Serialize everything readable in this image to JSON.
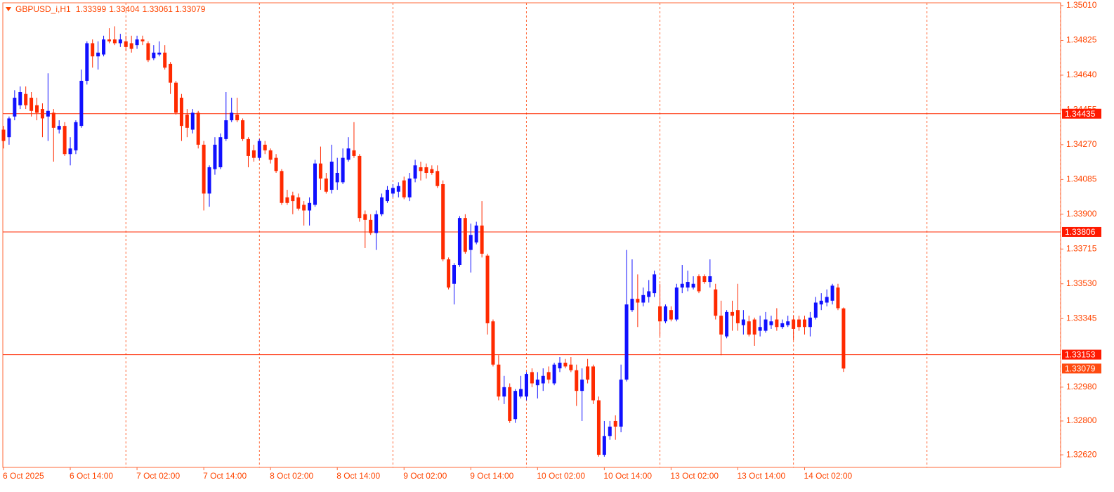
{
  "chart_data": {
    "type": "candlestick",
    "symbol": "GBPUSD_i,H1",
    "bull_color": "#1010ff",
    "bear_color": "#ff2a00",
    "ylim": [
      1.32553,
      1.35025
    ],
    "yticks": [
      {
        "value": 1.3501,
        "label": "1.35010"
      },
      1.34825,
      {
        "value": 1.3464,
        "label": "1.34640"
      },
      1.34455,
      {
        "value": 1.3427,
        "label": "1.34270"
      },
      1.34085,
      {
        "value": 1.339,
        "label": "1.33900"
      },
      1.33715,
      {
        "value": 1.3353,
        "label": "1.33530"
      },
      1.33345,
      {
        "value": 1.3298,
        "label": "1.32980"
      },
      {
        "value": 1.328,
        "label": "1.32800"
      },
      {
        "value": 1.3262,
        "label": "1.32620"
      }
    ],
    "levels": [
      1.34435,
      1.33806,
      1.33153
    ],
    "categories": [
      "6 Oct 2025",
      null,
      null,
      null,
      null,
      null,
      null,
      null,
      null,
      null,
      null,
      null,
      "6 Oct 14:00",
      null,
      null,
      null,
      null,
      null,
      null,
      null,
      null,
      null,
      null,
      null,
      "7 Oct 02:00",
      null,
      null,
      null,
      null,
      null,
      null,
      null,
      null,
      null,
      null,
      null,
      "7 Oct 14:00",
      null,
      null,
      null,
      null,
      null,
      null,
      null,
      null,
      null,
      null,
      null,
      "8 Oct 02:00",
      null,
      null,
      null,
      null,
      null,
      null,
      null,
      null,
      null,
      null,
      null,
      "8 Oct 14:00",
      null,
      null,
      null,
      null,
      null,
      null,
      null,
      null,
      null,
      null,
      null,
      "9 Oct 02:00",
      null,
      null,
      null,
      null,
      null,
      null,
      null,
      null,
      null,
      null,
      null,
      "9 Oct 14:00",
      null,
      null,
      null,
      null,
      null,
      null,
      null,
      null,
      null,
      null,
      null,
      "10 Oct 02:00",
      null,
      null,
      null,
      null,
      null,
      null,
      null,
      null,
      null,
      null,
      null,
      "10 Oct 14:00",
      null,
      null,
      null,
      null,
      null,
      null,
      null,
      null,
      null,
      null,
      null,
      "13 Oct 02:00",
      null,
      null,
      null,
      null,
      null,
      null,
      null,
      null,
      null,
      null,
      null,
      "13 Oct 14:00",
      null,
      null,
      null,
      null,
      null,
      null,
      null,
      null,
      null,
      null,
      null,
      "14 Oct 02:00",
      null,
      null,
      null,
      null,
      null,
      null,
      null
    ],
    "values": [
      [
        1.3435,
        1.3437,
        1.3425,
        1.3429
      ],
      [
        1.3431,
        1.3442,
        1.3427,
        1.3441
      ],
      [
        1.3442,
        1.3456,
        1.344,
        1.3452
      ],
      [
        1.3448,
        1.3458,
        1.3446,
        1.3455
      ],
      [
        1.3454,
        1.3458,
        1.3446,
        1.3448
      ],
      [
        1.3452,
        1.3455,
        1.3442,
        1.3445
      ],
      [
        1.3448,
        1.3452,
        1.344,
        1.3444
      ],
      [
        1.3446,
        1.3449,
        1.3431,
        1.3441
      ],
      [
        1.3442,
        1.3465,
        1.3429,
        1.3445
      ],
      [
        1.3444,
        1.3446,
        1.3418,
        1.3436
      ],
      [
        1.3435,
        1.344,
        1.3433,
        1.3437
      ],
      [
        1.3437,
        1.3439,
        1.3421,
        1.3422
      ],
      [
        1.3422,
        1.3431,
        1.3416,
        1.3425
      ],
      [
        1.3424,
        1.344,
        1.3422,
        1.3439
      ],
      [
        1.3437,
        1.3467,
        1.3436,
        1.3461
      ],
      [
        1.3461,
        1.3482,
        1.3459,
        1.3481
      ],
      [
        1.3481,
        1.3483,
        1.3468,
        1.3474
      ],
      [
        1.3474,
        1.3482,
        1.3467,
        1.3476
      ],
      [
        1.3475,
        1.3485,
        1.3474,
        1.3483
      ],
      [
        1.3483,
        1.3489,
        1.3481,
        1.3482
      ],
      [
        1.3483,
        1.349,
        1.348,
        1.3481
      ],
      [
        1.3481,
        1.3486,
        1.3479,
        1.3483
      ],
      [
        1.3482,
        1.3485,
        1.3477,
        1.3479
      ],
      [
        1.3481,
        1.3485,
        1.3476,
        1.3478
      ],
      [
        1.348,
        1.3485,
        1.3478,
        1.3483
      ],
      [
        1.3483,
        1.3485,
        1.348,
        1.3482
      ],
      [
        1.3481,
        1.3482,
        1.3471,
        1.3472
      ],
      [
        1.3473,
        1.348,
        1.3472,
        1.3476
      ],
      [
        1.3475,
        1.3482,
        1.3474,
        1.3476
      ],
      [
        1.3476,
        1.348,
        1.3467,
        1.3468
      ],
      [
        1.347,
        1.3471,
        1.3454,
        1.346
      ],
      [
        1.346,
        1.3461,
        1.3443,
        1.3444
      ],
      [
        1.3452,
        1.3454,
        1.3429,
        1.3437
      ],
      [
        1.3443,
        1.3446,
        1.3431,
        1.3436
      ],
      [
        1.3435,
        1.3446,
        1.3433,
        1.3444
      ],
      [
        1.3444,
        1.3445,
        1.3425,
        1.3427
      ],
      [
        1.3427,
        1.3429,
        1.3392,
        1.3401
      ],
      [
        1.3401,
        1.3416,
        1.3394,
        1.3415
      ],
      [
        1.3414,
        1.3431,
        1.3411,
        1.3427
      ],
      [
        1.3415,
        1.3433,
        1.3414,
        1.3431
      ],
      [
        1.343,
        1.3455,
        1.3429,
        1.344
      ],
      [
        1.344,
        1.3452,
        1.3439,
        1.3444
      ],
      [
        1.3443,
        1.3452,
        1.3439,
        1.344
      ],
      [
        1.344,
        1.3441,
        1.3429,
        1.343
      ],
      [
        1.343,
        1.3431,
        1.3415,
        1.3421
      ],
      [
        1.3424,
        1.3427,
        1.3418,
        1.342
      ],
      [
        1.342,
        1.343,
        1.3419,
        1.3429
      ],
      [
        1.3427,
        1.3429,
        1.3422,
        1.3424
      ],
      [
        1.3424,
        1.3425,
        1.3417,
        1.3419
      ],
      [
        1.342,
        1.3422,
        1.3412,
        1.3413
      ],
      [
        1.3413,
        1.3414,
        1.3395,
        1.3396
      ],
      [
        1.3399,
        1.3403,
        1.3395,
        1.3396
      ],
      [
        1.34,
        1.3402,
        1.339,
        1.3397
      ],
      [
        1.3399,
        1.3401,
        1.3392,
        1.3393
      ],
      [
        1.3395,
        1.3397,
        1.3384,
        1.3392
      ],
      [
        1.3392,
        1.3399,
        1.3384,
        1.3396
      ],
      [
        1.3395,
        1.3419,
        1.3394,
        1.3417
      ],
      [
        1.3417,
        1.3426,
        1.3403,
        1.3409
      ],
      [
        1.3409,
        1.3412,
        1.3401,
        1.3402
      ],
      [
        1.3403,
        1.3427,
        1.3401,
        1.3418
      ],
      [
        1.3407,
        1.342,
        1.3403,
        1.3412
      ],
      [
        1.3407,
        1.3425,
        1.3406,
        1.342
      ],
      [
        1.3419,
        1.3431,
        1.3418,
        1.3425
      ],
      [
        1.3424,
        1.3439,
        1.342,
        1.3421
      ],
      [
        1.3421,
        1.3422,
        1.3386,
        1.3388
      ],
      [
        1.339,
        1.3392,
        1.3372,
        1.3387
      ],
      [
        1.3387,
        1.339,
        1.3379,
        1.338
      ],
      [
        1.338,
        1.3392,
        1.3371,
        1.339
      ],
      [
        1.339,
        1.3401,
        1.3389,
        1.3399
      ],
      [
        1.3397,
        1.3405,
        1.3396,
        1.3403
      ],
      [
        1.3401,
        1.3406,
        1.3399,
        1.3404
      ],
      [
        1.3402,
        1.3407,
        1.3399,
        1.3405
      ],
      [
        1.3408,
        1.341,
        1.3398,
        1.3399
      ],
      [
        1.3399,
        1.3412,
        1.3397,
        1.3409
      ],
      [
        1.3409,
        1.3419,
        1.3407,
        1.3416
      ],
      [
        1.3415,
        1.3418,
        1.3408,
        1.3413
      ],
      [
        1.3415,
        1.3417,
        1.3409,
        1.3412
      ],
      [
        1.3414,
        1.3416,
        1.3411,
        1.3412
      ],
      [
        1.3413,
        1.3416,
        1.3404,
        1.3405
      ],
      [
        1.3406,
        1.3408,
        1.3365,
        1.3366
      ],
      [
        1.3366,
        1.3367,
        1.335,
        1.3351
      ],
      [
        1.3353,
        1.3364,
        1.3342,
        1.3363
      ],
      [
        1.3363,
        1.3389,
        1.3362,
        1.3388
      ],
      [
        1.3388,
        1.339,
        1.3369,
        1.337
      ],
      [
        1.3371,
        1.3385,
        1.3359,
        1.3379
      ],
      [
        1.3375,
        1.3386,
        1.3374,
        1.3384
      ],
      [
        1.3384,
        1.3397,
        1.3367,
        1.3369
      ],
      [
        1.3368,
        1.3369,
        1.3326,
        1.3332
      ],
      [
        1.3333,
        1.3334,
        1.3309,
        1.331
      ],
      [
        1.331,
        1.3315,
        1.3291,
        1.3293
      ],
      [
        1.3293,
        1.3304,
        1.3289,
        1.3298
      ],
      [
        1.3298,
        1.33,
        1.3279,
        1.328
      ],
      [
        1.3281,
        1.3297,
        1.3279,
        1.3296
      ],
      [
        1.3293,
        1.3304,
        1.3292,
        1.3297
      ],
      [
        1.3293,
        1.3306,
        1.3291,
        1.3305
      ],
      [
        1.3306,
        1.3308,
        1.3298,
        1.33
      ],
      [
        1.3299,
        1.3306,
        1.3292,
        1.3302
      ],
      [
        1.33,
        1.3308,
        1.3296,
        1.3304
      ],
      [
        1.3306,
        1.3309,
        1.33,
        1.3302
      ],
      [
        1.33,
        1.3311,
        1.3299,
        1.331
      ],
      [
        1.3308,
        1.3314,
        1.3306,
        1.3311
      ],
      [
        1.3311,
        1.3313,
        1.3308,
        1.3309
      ],
      [
        1.331,
        1.3314,
        1.3306,
        1.3307
      ],
      [
        1.3307,
        1.331,
        1.3288,
        1.3296
      ],
      [
        1.3296,
        1.3308,
        1.328,
        1.3302
      ],
      [
        1.3309,
        1.3313,
        1.33,
        1.3302
      ],
      [
        1.3309,
        1.331,
        1.3289,
        1.3291
      ],
      [
        1.3291,
        1.3293,
        1.3261,
        1.3262
      ],
      [
        1.3262,
        1.328,
        1.3261,
        1.3272
      ],
      [
        1.3272,
        1.328,
        1.327,
        1.3277
      ],
      [
        1.328,
        1.3283,
        1.327,
        1.3277
      ],
      [
        1.3277,
        1.331,
        1.3274,
        1.3302
      ],
      [
        1.3302,
        1.3371,
        1.3301,
        1.3342
      ],
      [
        1.3339,
        1.3366,
        1.3338,
        1.3345
      ],
      [
        1.3345,
        1.3358,
        1.333,
        1.3343
      ],
      [
        1.3343,
        1.3351,
        1.3341,
        1.3347
      ],
      [
        1.3346,
        1.3355,
        1.3343,
        1.3349
      ],
      [
        1.3348,
        1.336,
        1.3346,
        1.3358
      ],
      [
        1.3341,
        1.3353,
        1.3325,
        1.3333
      ],
      [
        1.3333,
        1.3342,
        1.3332,
        1.3341
      ],
      [
        1.3339,
        1.3341,
        1.3333,
        1.3334
      ],
      [
        1.3334,
        1.3353,
        1.3333,
        1.3351
      ],
      [
        1.3351,
        1.3363,
        1.3348,
        1.3353
      ],
      [
        1.3351,
        1.336,
        1.3349,
        1.3354
      ],
      [
        1.3351,
        1.3357,
        1.335,
        1.3353
      ],
      [
        1.3357,
        1.3358,
        1.3348,
        1.3349
      ],
      [
        1.3357,
        1.3358,
        1.3353,
        1.3354
      ],
      [
        1.3354,
        1.3366,
        1.3351,
        1.3357
      ],
      [
        1.335,
        1.3353,
        1.3334,
        1.3336
      ],
      [
        1.3336,
        1.3344,
        1.3315,
        1.3326
      ],
      [
        1.3325,
        1.3339,
        1.3324,
        1.3338
      ],
      [
        1.3338,
        1.3344,
        1.3328,
        1.3336
      ],
      [
        1.3339,
        1.3353,
        1.3328,
        1.3332
      ],
      [
        1.3331,
        1.3339,
        1.3326,
        1.3334
      ],
      [
        1.3333,
        1.3336,
        1.3325,
        1.3326
      ],
      [
        1.3334,
        1.3335,
        1.332,
        1.3326
      ],
      [
        1.3328,
        1.3336,
        1.3325,
        1.333
      ],
      [
        1.3328,
        1.3338,
        1.3327,
        1.3334
      ],
      [
        1.3331,
        1.3336,
        1.3329,
        1.3333
      ],
      [
        1.3334,
        1.334,
        1.3328,
        1.333
      ],
      [
        1.333,
        1.3334,
        1.3329,
        1.3332
      ],
      [
        1.3331,
        1.3336,
        1.333,
        1.3333
      ],
      [
        1.3334,
        1.3336,
        1.3323,
        1.3329
      ],
      [
        1.3334,
        1.3336,
        1.3328,
        1.333
      ],
      [
        1.3334,
        1.3336,
        1.3326,
        1.333
      ],
      [
        1.333,
        1.3338,
        1.3325,
        1.3335
      ],
      [
        1.3335,
        1.3346,
        1.3334,
        1.3343
      ],
      [
        1.3342,
        1.3348,
        1.3339,
        1.3344
      ],
      [
        1.3343,
        1.335,
        1.3341,
        1.3346
      ],
      [
        1.3344,
        1.3353,
        1.3342,
        1.3352
      ],
      [
        1.3351,
        1.3353,
        1.3339,
        1.334
      ],
      [
        1.33399,
        1.33404,
        1.33061,
        1.33079
      ]
    ]
  }
}
